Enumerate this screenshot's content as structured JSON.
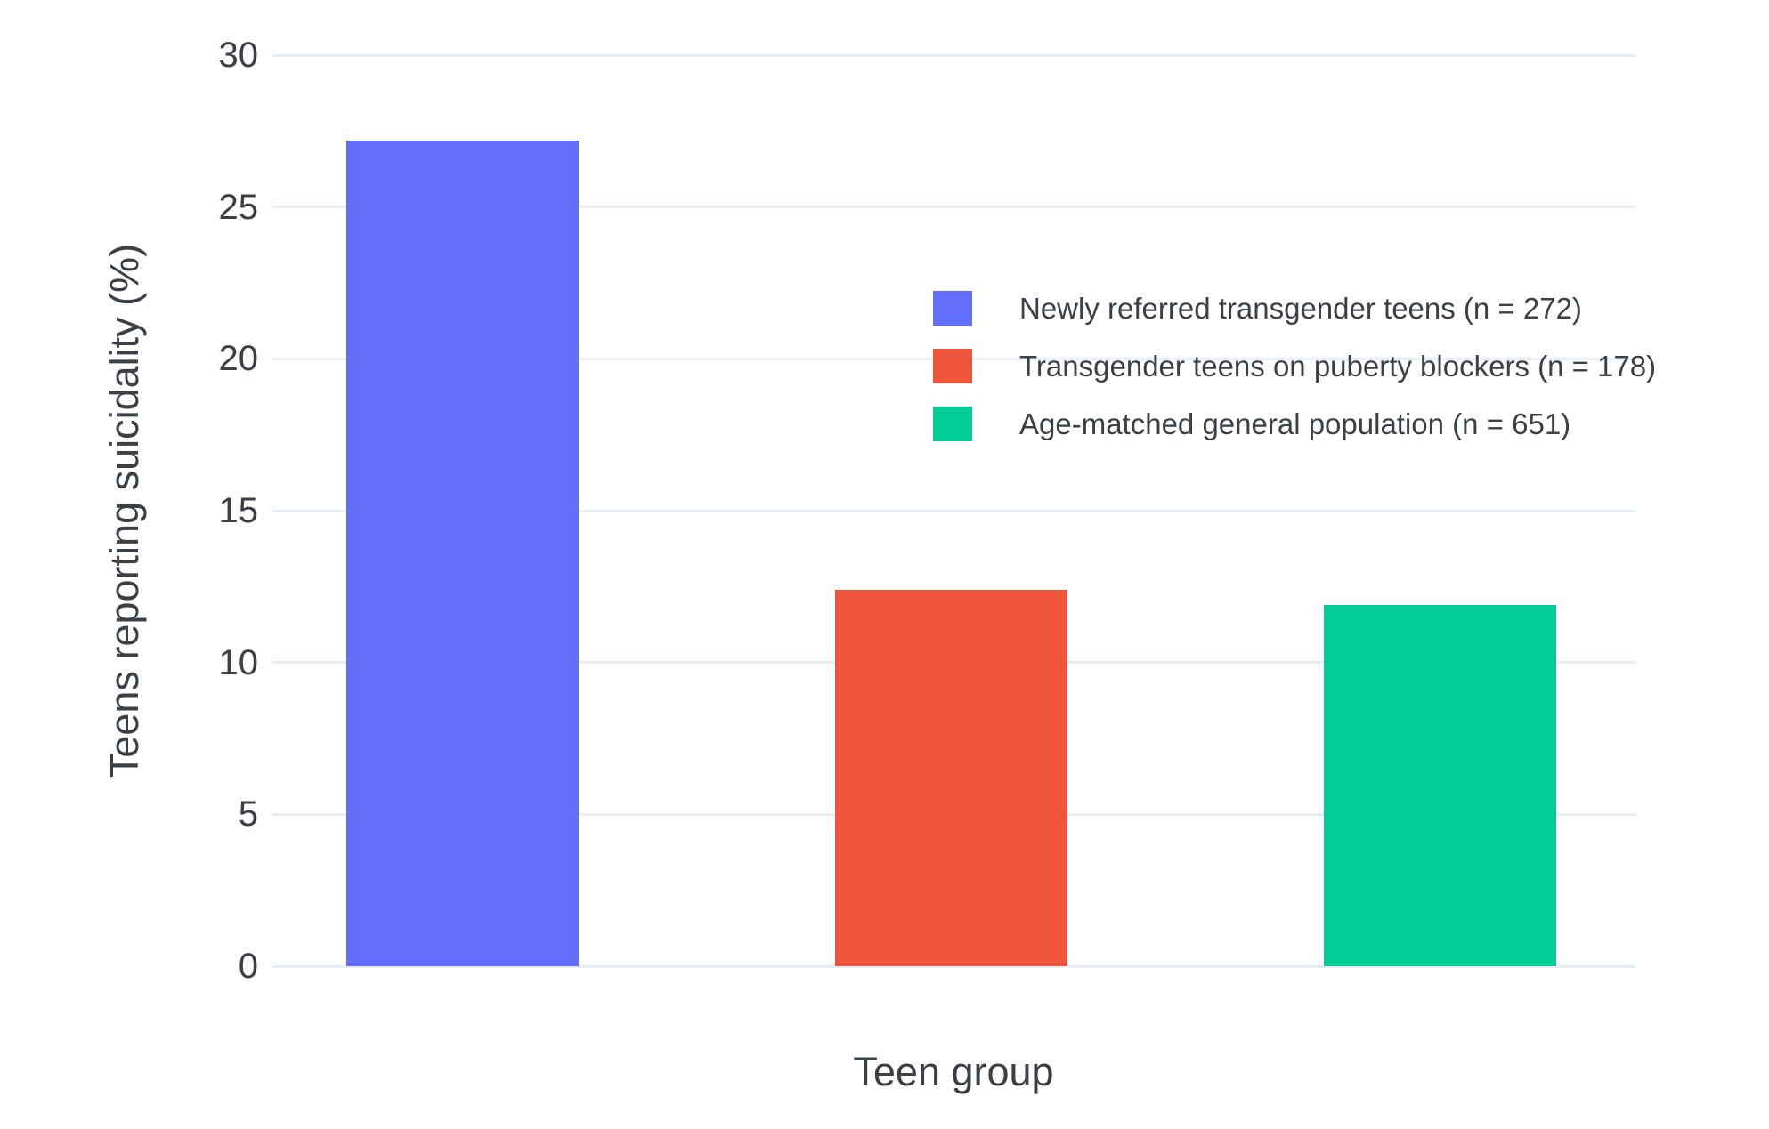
{
  "chart_data": {
    "type": "bar",
    "title": "",
    "xlabel": "Teen group",
    "ylabel": "Teens reporting suicidality (%)",
    "categories": [
      "Newly referred transgender teens (n = 272)",
      "Transgender teens on puberty blockers (n = 178)",
      "Age-matched general population (n = 651)"
    ],
    "values": [
      27.2,
      12.4,
      11.9
    ],
    "bar_colors": [
      "#636EFA",
      "#EF553B",
      "#00CC96"
    ],
    "ylim": [
      0,
      30
    ],
    "yticks": [
      "0",
      "5",
      "10",
      "15",
      "20",
      "25",
      "30"
    ],
    "grid": "horizontal gridlines on, light blue-gray",
    "legend_position": "inside plot, upper center-left",
    "legend_entries": [
      {
        "label": "Newly referred transgender teens (n = 272)",
        "color": "#636EFA"
      },
      {
        "label": "Transgender teens on puberty blockers (n = 178)",
        "color": "#EF553B"
      },
      {
        "label": "Age-matched general population (n = 651)",
        "color": "#00CC96"
      }
    ]
  },
  "colors": {
    "background": "#FFFFFF",
    "gridline": "#E7ECF5",
    "text": "#3B4046"
  }
}
